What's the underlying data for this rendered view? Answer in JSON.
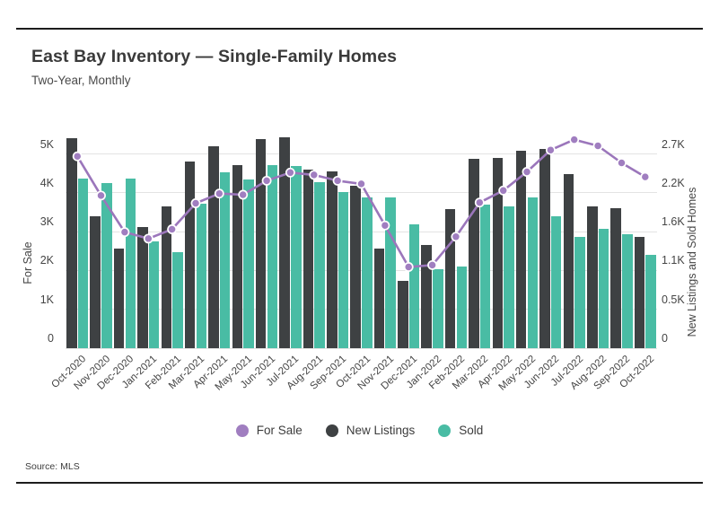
{
  "header": {
    "title": "East Bay Inventory — Single-Family Homes",
    "subtitle": "Two-Year, Monthly"
  },
  "source": "Source: MLS",
  "colors": {
    "for_sale_line": "#9b76bb",
    "for_sale_marker": "#a07ec0",
    "marker_stroke": "#ffffff",
    "new_listings": "#3e4143",
    "sold": "#49bca4",
    "grid": "#e3e3e3",
    "rule": "#1c1c1c",
    "text": "#454545",
    "background": "#ffffff"
  },
  "chart_data": {
    "type": "bar",
    "subtype": "grouped bars with line overlay, dual y-axis",
    "title": "East Bay Inventory — Single-Family Homes",
    "subtitle": "Two-Year, Monthly",
    "grid": "horizontal only",
    "legend_position": "bottom center",
    "categories": [
      "Oct-2020",
      "Nov-2020",
      "Dec-2020",
      "Jan-2021",
      "Feb-2021",
      "Mar-2021",
      "Apr-2021",
      "May-2021",
      "Jun-2021",
      "Jul-2021",
      "Aug-2021",
      "Sep-2021",
      "Oct-2021",
      "Nov-2021",
      "Dec-2021",
      "Jan-2022",
      "Feb-2022",
      "Mar-2022",
      "Apr-2022",
      "May-2022",
      "Jun-2022",
      "Jul-2022",
      "Aug-2022",
      "Sep-2022",
      "Oct-2022"
    ],
    "left_axis": {
      "label": "For Sale",
      "tick_labels": [
        "0",
        "1K",
        "2K",
        "3K",
        "4K",
        "5K"
      ],
      "tick_values": [
        0,
        1000,
        2000,
        3000,
        4000,
        5000
      ],
      "range": [
        0,
        5000
      ]
    },
    "right_axis": {
      "label": "New Listings and Sold Homes",
      "tick_labels": [
        "0",
        "0.5K",
        "1.1K",
        "1.6K",
        "2.2K",
        "2.7K"
      ],
      "tick_values": [
        0,
        540,
        1080,
        1620,
        2160,
        2700
      ],
      "range": [
        0,
        2700
      ]
    },
    "series": [
      {
        "name": "For Sale",
        "type": "line",
        "axis": "left",
        "color": "#a07ec0",
        "values": [
          4940,
          3930,
          2990,
          2820,
          3060,
          3730,
          3980,
          3950,
          4310,
          4520,
          4460,
          4310,
          4230,
          3160,
          2090,
          2140,
          2870,
          3750,
          4060,
          4540,
          5100,
          5370,
          5210,
          4770,
          4410
        ]
      },
      {
        "name": "New Listings",
        "type": "bar",
        "axis": "right",
        "color": "#3e4143",
        "values": [
          2920,
          1840,
          1390,
          1690,
          1970,
          2600,
          2810,
          2540,
          2910,
          2930,
          2480,
          2460,
          2260,
          1390,
          940,
          1430,
          1940,
          2630,
          2640,
          2740,
          2770,
          2420,
          1970,
          1950,
          1550
        ]
      },
      {
        "name": "Sold",
        "type": "bar",
        "axis": "right",
        "color": "#49bca4",
        "values": [
          2360,
          2300,
          2360,
          1480,
          1330,
          2010,
          2450,
          2340,
          2540,
          2530,
          2310,
          2170,
          2100,
          2100,
          1720,
          1100,
          1140,
          2000,
          1970,
          2100,
          1840,
          1550,
          1660,
          1590,
          1300
        ]
      }
    ]
  }
}
